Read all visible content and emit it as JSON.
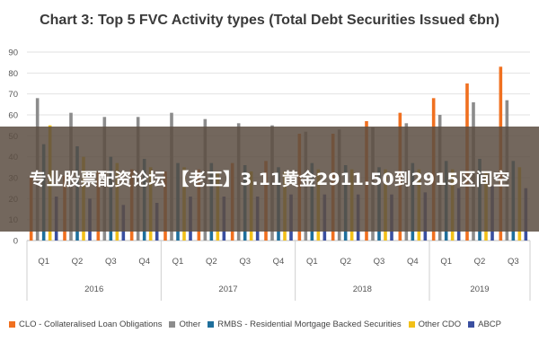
{
  "overlay_text": "专业股票配资论坛 【老王】3.11黄金2911.50到2915区间空",
  "colors": {
    "CLO": "#f07020",
    "Other": "#8c8c8c",
    "RMBS": "#1f6f9c",
    "OtherCDO": "#f2c018",
    "ABCP": "#3a4fa0"
  },
  "chart_data": {
    "type": "bar",
    "title": "Chart 3: Top 5 FVC Activity types (Total Debt Securities Issued €bn)",
    "xlabel": "",
    "ylabel": "",
    "ylim": [
      0,
      90
    ],
    "yticks": [
      0,
      10,
      20,
      30,
      40,
      50,
      60,
      70,
      80,
      90
    ],
    "grid": true,
    "legend_position": "bottom",
    "categories": [
      "Q1",
      "Q2",
      "Q3",
      "Q4",
      "Q1",
      "Q2",
      "Q3",
      "Q4",
      "Q1",
      "Q2",
      "Q3",
      "Q4",
      "Q1",
      "Q2",
      "Q3"
    ],
    "year_groups": [
      {
        "label": "2016",
        "count": 4
      },
      {
        "label": "2017",
        "count": 4
      },
      {
        "label": "2018",
        "count": 4
      },
      {
        "label": "2019",
        "count": 3
      }
    ],
    "series": [
      {
        "name": "CLO - Collateralised Loan Obligations",
        "color_key": "CLO",
        "values": [
          30,
          31,
          33,
          34,
          33,
          34,
          37,
          38,
          51,
          51,
          57,
          61,
          68,
          75,
          83
        ]
      },
      {
        "name": "Other",
        "color_key": "Other",
        "values": [
          68,
          61,
          59,
          59,
          61,
          58,
          56,
          55,
          52,
          53,
          54,
          56,
          60,
          66,
          67
        ]
      },
      {
        "name": "RMBS - Residential Mortgage Backed Securities",
        "color_key": "RMBS",
        "values": [
          46,
          45,
          40,
          39,
          37,
          37,
          36,
          35,
          37,
          36,
          35,
          37,
          38,
          39,
          38
        ]
      },
      {
        "name": "Other CDO",
        "color_key": "OtherCDO",
        "values": [
          55,
          40,
          37,
          35,
          35,
          33,
          33,
          33,
          34,
          34,
          34,
          34,
          34,
          33,
          35
        ]
      },
      {
        "name": "ABCP",
        "color_key": "ABCP",
        "values": [
          21,
          20,
          17,
          18,
          21,
          21,
          21,
          22,
          22,
          22,
          22,
          23,
          25,
          26,
          25
        ]
      }
    ]
  }
}
